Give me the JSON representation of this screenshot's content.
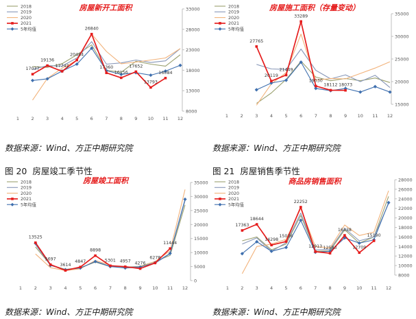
{
  "source_text": "数据来源：Wind、方正中期研究院",
  "captions": [
    {
      "num": "图 20",
      "text": "房屋竣工季节性"
    },
    {
      "num": "图 21",
      "text": "房屋销售季节性"
    }
  ],
  "colors": {
    "2018": "#9aa06e",
    "2019": "#8797b8",
    "2020": "#f2b27a",
    "2021": "#e51c1c",
    "avg": "#3e6fae",
    "title": "#e51c1c"
  },
  "chart_data": [
    {
      "type": "line",
      "title": "房屋新开工面积",
      "x": [
        1,
        2,
        3,
        4,
        5,
        6,
        7,
        8,
        9,
        10,
        11,
        12
      ],
      "ylim": [
        8000,
        33000
      ],
      "yticks": [
        8000,
        13000,
        18000,
        23000,
        28000,
        33000
      ],
      "grid": false,
      "legend_position": "top-left",
      "series": [
        {
          "name": "2018",
          "color_key": "2018",
          "values": [
            null,
            18900,
            18700,
            19600,
            21800,
            24200,
            18000,
            17500,
            20200,
            19500,
            19000,
            21800
          ]
        },
        {
          "name": "2019",
          "color_key": "2019",
          "values": [
            null,
            18200,
            19136,
            19000,
            21000,
            25000,
            19500,
            19800,
            20500,
            19900,
            20300,
            23300
          ]
        },
        {
          "name": "2020",
          "color_key": "2020",
          "values": [
            null,
            10700,
            16000,
            18500,
            20450,
            26840,
            22600,
            19600,
            20000,
            20500,
            21000,
            23300
          ]
        },
        {
          "name": "2021",
          "color_key": "2021",
          "values": [
            null,
            17037,
            19136,
            17742,
            20484,
            26840,
            17360,
            16156,
            17652,
            13793,
            16084,
            null
          ]
        },
        {
          "name": "5年均值",
          "color_key": "avg",
          "values": [
            null,
            15500,
            15900,
            17800,
            19500,
            23400,
            17900,
            17000,
            17400,
            16800,
            17800,
            19200
          ]
        }
      ],
      "data_labels": [
        {
          "x": 2,
          "text": "17037",
          "side": "above"
        },
        {
          "x": 3,
          "text": "19136",
          "side": "above"
        },
        {
          "x": 4,
          "text": "17742",
          "side": "above"
        },
        {
          "x": 5,
          "text": "20484",
          "side": "above"
        },
        {
          "x": 6,
          "text": "26840",
          "side": "above"
        },
        {
          "x": 7,
          "text": "17360",
          "side": "above"
        },
        {
          "x": 8,
          "text": "16156",
          "side": "above"
        },
        {
          "x": 9,
          "text": "17652",
          "side": "above"
        },
        {
          "x": 10,
          "text": "13793",
          "side": "above"
        },
        {
          "x": 11,
          "text": "16084",
          "side": "above"
        }
      ]
    },
    {
      "type": "line",
      "title": "房屋施工面积（存量变动）",
      "x": [
        1,
        2,
        3,
        4,
        5,
        6,
        7,
        8,
        9,
        10,
        11,
        12
      ],
      "ylim": [
        15000,
        35000
      ],
      "yticks": [
        15000,
        20000,
        25000,
        30000,
        35000
      ],
      "grid": false,
      "legend_position": "top-left",
      "series": [
        {
          "name": "2018",
          "color_key": "2018",
          "values": [
            null,
            null,
            15200,
            17500,
            20500,
            24500,
            21000,
            20200,
            20700,
            20200,
            20800,
            19800
          ]
        },
        {
          "name": "2019",
          "color_key": "2019",
          "values": [
            null,
            null,
            23800,
            22800,
            22700,
            27200,
            22500,
            20600,
            21500,
            20000,
            21400,
            18700
          ]
        },
        {
          "name": "2020",
          "color_key": "2020",
          "values": [
            null,
            null,
            14800,
            19500,
            22000,
            30500,
            20300,
            20700,
            20600,
            21800,
            23000,
            24400
          ]
        },
        {
          "name": "2021",
          "color_key": "2021",
          "values": [
            null,
            null,
            27765,
            20119,
            21449,
            33289,
            19030,
            18112,
            18073,
            null,
            null,
            null
          ]
        },
        {
          "name": "5年均值",
          "color_key": "avg",
          "values": [
            null,
            null,
            18200,
            19700,
            20300,
            24300,
            18500,
            18000,
            18500,
            17700,
            18900,
            17700
          ]
        }
      ],
      "data_labels": [
        {
          "x": 3,
          "text": "27765",
          "side": "above"
        },
        {
          "x": 4,
          "text": "20119",
          "side": "above"
        },
        {
          "x": 5,
          "text": "21449",
          "side": "above"
        },
        {
          "x": 6,
          "text": "33289",
          "side": "above"
        },
        {
          "x": 7,
          "text": "19030",
          "side": "above"
        },
        {
          "x": 8,
          "text": "18112",
          "side": "above"
        },
        {
          "x": 9,
          "text": "18073",
          "side": "above"
        }
      ]
    },
    {
      "type": "line",
      "title": "房屋竣工面积",
      "x": [
        1,
        2,
        3,
        4,
        5,
        6,
        7,
        8,
        9,
        10,
        11,
        12
      ],
      "ylim": [
        0,
        35000
      ],
      "yticks": [
        0,
        5000,
        10000,
        15000,
        20000,
        25000,
        30000,
        35000
      ],
      "grid": false,
      "legend_position": "top-left",
      "series": [
        {
          "name": "2018",
          "color_key": "2018",
          "values": [
            null,
            12000,
            5600,
            4000,
            4600,
            6600,
            5000,
            4800,
            5100,
            6800,
            9000,
            27000
          ]
        },
        {
          "name": "2019",
          "color_key": "2019",
          "values": [
            null,
            12800,
            5600,
            3700,
            4400,
            6900,
            5100,
            4700,
            5000,
            6200,
            9600,
            28500
          ]
        },
        {
          "name": "2020",
          "color_key": "2020",
          "values": [
            null,
            9500,
            4600,
            3600,
            4200,
            7200,
            5500,
            4400,
            4900,
            6800,
            10600,
            32500
          ]
        },
        {
          "name": "2021",
          "color_key": "2021",
          "values": [
            null,
            13525,
            5697,
            3614,
            4847,
            8898,
            5301,
            4957,
            4276,
            6278,
            11444,
            null
          ]
        },
        {
          "name": "5年均值",
          "color_key": "avg",
          "values": [
            null,
            13300,
            5400,
            3900,
            4500,
            6800,
            5000,
            4500,
            4800,
            6400,
            9700,
            29000
          ]
        }
      ],
      "data_labels": [
        {
          "x": 2,
          "text": "13525",
          "side": "above"
        },
        {
          "x": 3,
          "text": "5697",
          "side": "above"
        },
        {
          "x": 4,
          "text": "3614",
          "side": "above"
        },
        {
          "x": 5,
          "text": "4847",
          "side": "above"
        },
        {
          "x": 6,
          "text": "8898",
          "side": "above"
        },
        {
          "x": 7,
          "text": "5301",
          "side": "above"
        },
        {
          "x": 8,
          "text": "4957",
          "side": "above"
        },
        {
          "x": 9,
          "text": "4276",
          "side": "above"
        },
        {
          "x": 10,
          "text": "6278",
          "side": "above"
        },
        {
          "x": 11,
          "text": "11444",
          "side": "above"
        }
      ]
    },
    {
      "type": "line",
      "title": "商品房销售面积",
      "x": [
        1,
        2,
        3,
        4,
        5,
        6,
        7,
        8,
        9,
        10,
        11,
        12
      ],
      "ylim": [
        8000,
        28000
      ],
      "yticks": [
        8000,
        10000,
        12000,
        14000,
        16000,
        18000,
        20000,
        22000,
        24000,
        26000,
        28000
      ],
      "grid": false,
      "legend_position": "top-left",
      "series": [
        {
          "name": "2018",
          "color_key": "2018",
          "values": [
            null,
            15200,
            16000,
            13300,
            14500,
            20500,
            13000,
            13100,
            17500,
            14700,
            16000,
            24500
          ]
        },
        {
          "name": "2019",
          "color_key": "2019",
          "values": [
            null,
            14500,
            15800,
            13000,
            14800,
            21000,
            13300,
            13400,
            17800,
            15200,
            16000,
            23000
          ]
        },
        {
          "name": "2020",
          "color_key": "2020",
          "values": [
            null,
            8300,
            14000,
            14500,
            15500,
            22000,
            14000,
            13700,
            18500,
            16300,
            17000,
            25700
          ]
        },
        {
          "name": "2021",
          "color_key": "2021",
          "values": [
            null,
            17363,
            18644,
            14298,
            15036,
            22252,
            12913,
            12583,
            16338,
            12709,
            15190,
            null
          ]
        },
        {
          "name": "5年均值",
          "color_key": "avg",
          "values": [
            null,
            12500,
            15000,
            13000,
            13800,
            19500,
            12800,
            13000,
            15800,
            14700,
            15400,
            23200
          ]
        }
      ],
      "data_labels": [
        {
          "x": 2,
          "text": "17363",
          "side": "above"
        },
        {
          "x": 3,
          "text": "18644",
          "side": "above"
        },
        {
          "x": 4,
          "text": "14298",
          "side": "above"
        },
        {
          "x": 5,
          "text": "15036",
          "side": "above"
        },
        {
          "x": 6,
          "text": "22252",
          "side": "above"
        },
        {
          "x": 7,
          "text": "12913",
          "side": "above"
        },
        {
          "x": 8,
          "text": "12583",
          "side": "above"
        },
        {
          "x": 9,
          "text": "16338",
          "side": "above"
        },
        {
          "x": 10,
          "text": "12709",
          "side": "above"
        },
        {
          "x": 11,
          "text": "15190",
          "side": "above"
        }
      ]
    }
  ]
}
